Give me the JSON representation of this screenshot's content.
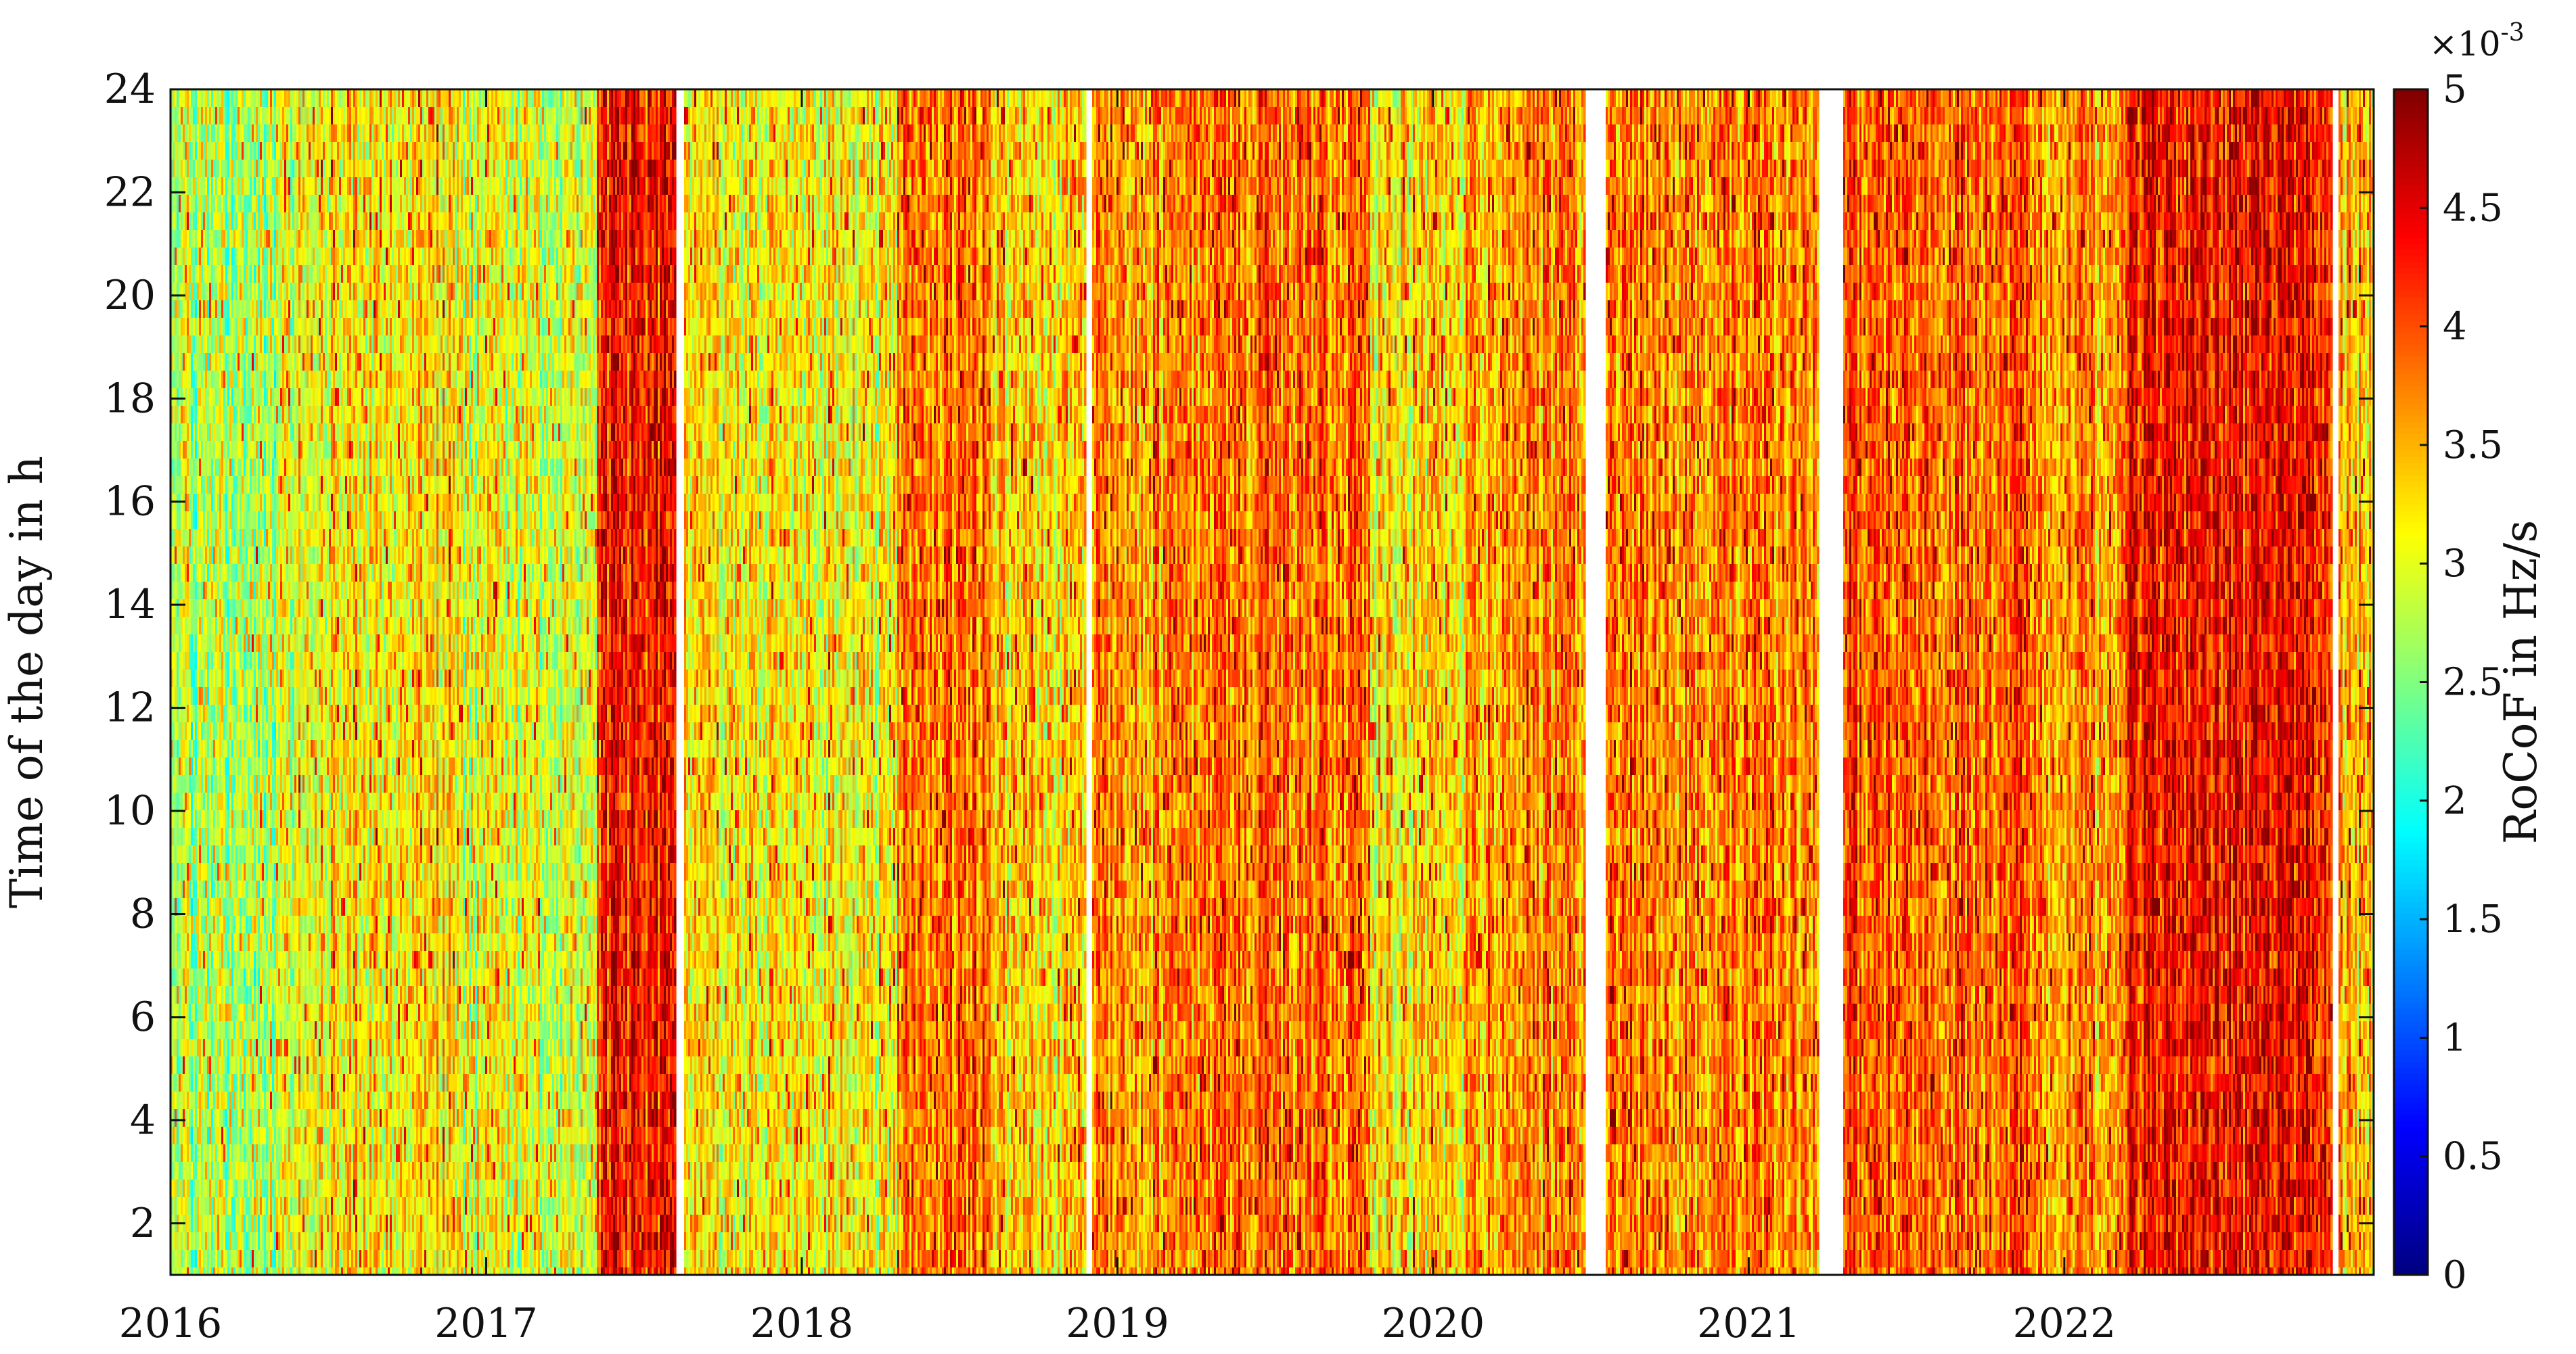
{
  "chart_data": {
    "type": "heatmap",
    "title": "",
    "xlabel": "",
    "ylabel": "Time of the day in h",
    "x_tick_labels": [
      "2016",
      "2017",
      "2018",
      "2019",
      "2020",
      "2021",
      "2022"
    ],
    "x_ticks": [
      2016,
      2017,
      2018,
      2019,
      2020,
      2021,
      2022
    ],
    "xlim": [
      2016.0,
      2022.98
    ],
    "y_ticks": [
      2,
      4,
      6,
      8,
      10,
      12,
      14,
      16,
      18,
      20,
      22,
      24
    ],
    "y_tick_labels": [
      "2",
      "4",
      "6",
      "8",
      "10",
      "12",
      "14",
      "16",
      "18",
      "20",
      "22",
      "24"
    ],
    "ylim": [
      1,
      24
    ],
    "colorbar": {
      "label": "RoCoF in Hz/s",
      "multiplier": "×10",
      "exponent": "-3",
      "ticks": [
        0,
        0.5,
        1,
        1.5,
        2,
        2.5,
        3,
        3.5,
        4,
        4.5,
        5
      ],
      "tick_labels": [
        "0",
        "0.5",
        "1",
        "1.5",
        "2",
        "2.5",
        "3",
        "3.5",
        "4",
        "4.5",
        "5"
      ],
      "range": [
        0,
        5
      ],
      "colormap": "jet"
    },
    "data_gaps_years": [
      [
        2017.6,
        2017.63
      ],
      [
        2018.9,
        2018.92
      ],
      [
        2020.48,
        2020.55
      ],
      [
        2021.22,
        2021.3
      ],
      [
        2022.85,
        2022.87
      ]
    ],
    "mean_level_by_period": [
      {
        "start": 2016.0,
        "end": 2016.4,
        "value": 2.75
      },
      {
        "start": 2016.4,
        "end": 2016.9,
        "value": 3.2
      },
      {
        "start": 2016.9,
        "end": 2017.35,
        "value": 2.9
      },
      {
        "start": 2017.35,
        "end": 2017.6,
        "value": 4.2
      },
      {
        "start": 2017.63,
        "end": 2018.3,
        "value": 3.1
      },
      {
        "start": 2018.3,
        "end": 2018.6,
        "value": 3.8
      },
      {
        "start": 2018.6,
        "end": 2018.9,
        "value": 3.3
      },
      {
        "start": 2018.92,
        "end": 2019.3,
        "value": 3.6
      },
      {
        "start": 2019.3,
        "end": 2019.8,
        "value": 3.8
      },
      {
        "start": 2019.8,
        "end": 2020.1,
        "value": 3.2
      },
      {
        "start": 2020.1,
        "end": 2020.48,
        "value": 3.6
      },
      {
        "start": 2020.55,
        "end": 2021.22,
        "value": 3.7
      },
      {
        "start": 2021.3,
        "end": 2021.9,
        "value": 3.9
      },
      {
        "start": 2021.9,
        "end": 2022.2,
        "value": 3.6
      },
      {
        "start": 2022.2,
        "end": 2022.85,
        "value": 4.3
      },
      {
        "start": 2022.87,
        "end": 2022.98,
        "value": 3.4
      }
    ]
  }
}
